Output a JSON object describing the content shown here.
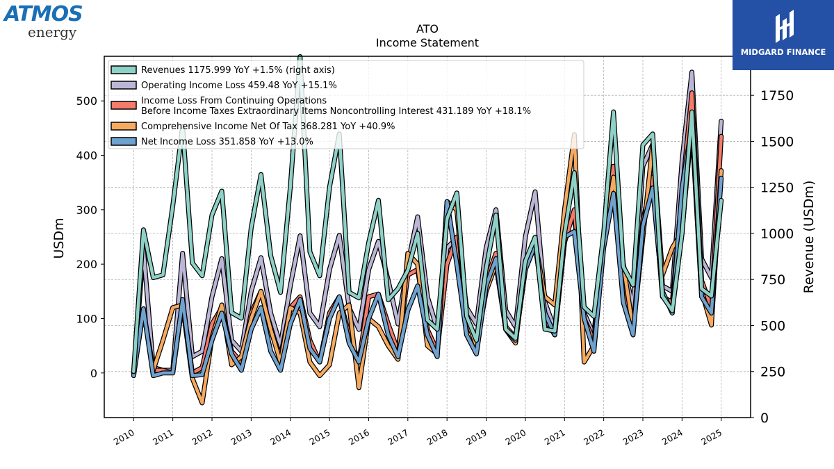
{
  "logos": {
    "company_brand": "ATMOS",
    "company_sub": "energy",
    "publisher": "MIDGARD FINANCE"
  },
  "chart_data": {
    "type": "line",
    "title": "ATO",
    "subtitle": "Income Statement",
    "ylabel": "USDm",
    "ylabel_right": "Revenue (USDm)",
    "ylim": [
      -82,
      582
    ],
    "ylim_right": [
      0,
      1962
    ],
    "yticks": [
      0,
      100,
      200,
      300,
      400,
      500
    ],
    "yticks_right": [
      0,
      250,
      500,
      750,
      1000,
      1250,
      1500,
      1750
    ],
    "xlim": [
      2009.25,
      2025.75
    ],
    "xticks": [
      "2010",
      "2011",
      "2012",
      "2013",
      "2014",
      "2015",
      "2016",
      "2017",
      "2018",
      "2019",
      "2020",
      "2021",
      "2022",
      "2023",
      "2024",
      "2025"
    ],
    "grid": true,
    "legend_position": "top-left",
    "x": [
      2010.0,
      2010.25,
      2010.5,
      2010.75,
      2011.0,
      2011.25,
      2011.5,
      2011.75,
      2012.0,
      2012.25,
      2012.5,
      2012.75,
      2013.0,
      2013.25,
      2013.5,
      2013.75,
      2014.0,
      2014.25,
      2014.5,
      2014.75,
      2015.0,
      2015.25,
      2015.5,
      2015.75,
      2016.0,
      2016.25,
      2016.5,
      2016.75,
      2017.0,
      2017.25,
      2017.5,
      2017.75,
      2018.0,
      2018.25,
      2018.5,
      2018.75,
      2019.0,
      2019.25,
      2019.5,
      2019.75,
      2020.0,
      2020.25,
      2020.5,
      2020.75,
      2021.0,
      2021.25,
      2021.5,
      2021.75,
      2022.0,
      2022.25,
      2022.5,
      2022.75,
      2023.0,
      2023.25,
      2023.5,
      2023.75,
      2024.0,
      2024.25,
      2024.5,
      2024.75,
      2025.0
    ],
    "series": [
      {
        "name": "Operating Income Loss",
        "legend": "Operating Income Loss  459.48 YoY +15.1%",
        "axis": "left",
        "color": "#bcb6d6",
        "values": [
          0,
          227,
          10,
          5,
          5,
          220,
          30,
          40,
          140,
          210,
          60,
          40,
          150,
          212,
          110,
          50,
          160,
          252,
          110,
          85,
          190,
          253,
          120,
          80,
          190,
          242,
          170,
          90,
          200,
          287,
          140,
          80,
          230,
          248,
          120,
          90,
          230,
          300,
          115,
          85,
          250,
          333,
          130,
          80,
          270,
          290,
          110,
          70,
          250,
          330,
          200,
          120,
          380,
          420,
          160,
          150,
          390,
          553,
          210,
          175,
          463
        ]
      },
      {
        "name": "Income Loss From Continuing Operations Before Income Taxes Extraordinary Items Noncontrolling Interest",
        "legend": "Income Loss From Continuing Operations\nBefore Income Taxes Extraordinary Items Noncontrolling Interest  431.189 YoY +18.1%",
        "axis": "left",
        "color": "#f47c6a",
        "values": [
          0,
          115,
          5,
          5,
          0,
          130,
          0,
          10,
          90,
          120,
          40,
          20,
          110,
          150,
          80,
          30,
          120,
          140,
          60,
          20,
          110,
          140,
          70,
          20,
          140,
          145,
          90,
          40,
          180,
          190,
          80,
          40,
          200,
          250,
          90,
          60,
          170,
          220,
          85,
          65,
          190,
          240,
          100,
          70,
          240,
          300,
          100,
          60,
          250,
          380,
          150,
          80,
          280,
          360,
          140,
          130,
          330,
          515,
          170,
          120,
          435
        ]
      },
      {
        "name": "Comprehensive Income Net Of Tax",
        "legend": "Comprehensive Income Net Of Tax  368.281 YoY +40.9%",
        "axis": "left",
        "color": "#f5aa60",
        "values": [
          0,
          115,
          5,
          60,
          120,
          125,
          -10,
          -55,
          65,
          125,
          15,
          30,
          100,
          150,
          80,
          20,
          120,
          110,
          20,
          -5,
          15,
          110,
          125,
          -27,
          100,
          85,
          50,
          25,
          220,
          200,
          50,
          35,
          315,
          300,
          100,
          50,
          150,
          200,
          80,
          55,
          200,
          240,
          140,
          125,
          300,
          438,
          20,
          50,
          240,
          360,
          200,
          80,
          250,
          420,
          180,
          230,
          260,
          460,
          150,
          88,
          372
        ]
      },
      {
        "name": "Net Income Loss",
        "legend": "Net Income Loss  351.858 YoY +13.0%",
        "axis": "left",
        "color": "#6fa2cf",
        "values": [
          -5,
          118,
          -5,
          0,
          0,
          135,
          -5,
          -3,
          60,
          110,
          35,
          5,
          80,
          120,
          40,
          5,
          90,
          135,
          45,
          20,
          100,
          140,
          55,
          20,
          100,
          145,
          70,
          30,
          115,
          160,
          70,
          30,
          315,
          200,
          70,
          35,
          160,
          210,
          80,
          60,
          190,
          235,
          110,
          70,
          250,
          260,
          100,
          40,
          230,
          330,
          130,
          70,
          270,
          340,
          150,
          110,
          340,
          455,
          140,
          110,
          358
        ]
      },
      {
        "name": "Revenues",
        "legend": "Revenues  1175.999 YoY +1.5% (right axis)",
        "axis": "right",
        "color": "#8ed1c6",
        "values": [
          250,
          1020,
          760,
          775,
          1150,
          1580,
          840,
          770,
          1100,
          1230,
          570,
          540,
          1030,
          1320,
          880,
          680,
          1250,
          1960,
          900,
          770,
          1250,
          1540,
          680,
          650,
          950,
          1180,
          640,
          700,
          800,
          1000,
          530,
          480,
          1080,
          1220,
          550,
          420,
          810,
          1100,
          480,
          430,
          850,
          980,
          480,
          470,
          1000,
          1330,
          600,
          550,
          1000,
          1660,
          820,
          720,
          1480,
          1540,
          660,
          580,
          1000,
          1660,
          700,
          660,
          1180
        ]
      }
    ]
  }
}
